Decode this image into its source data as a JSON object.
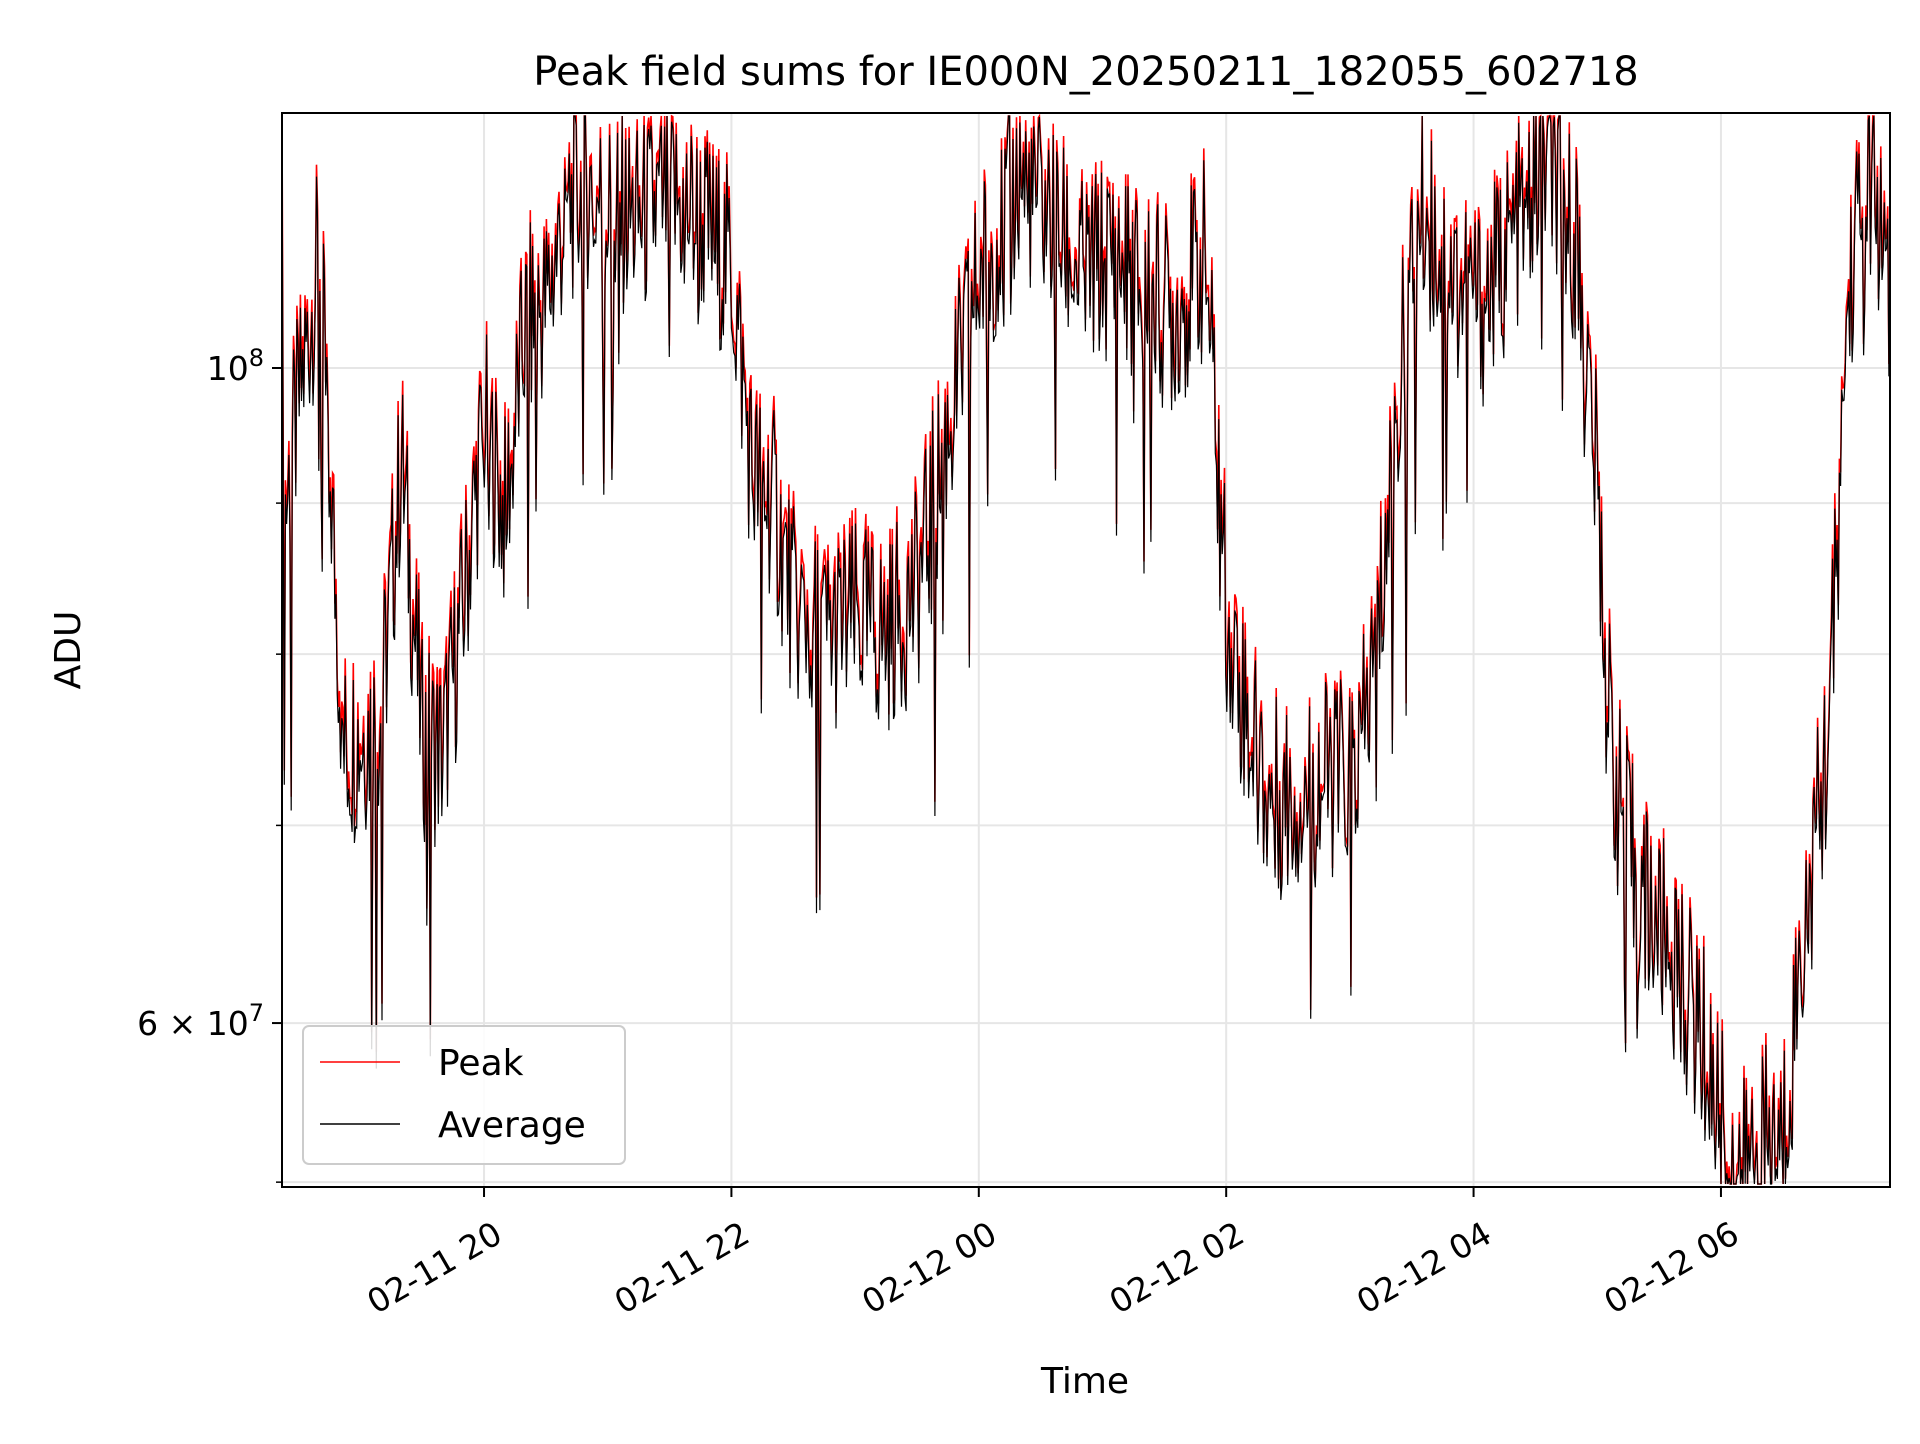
{
  "chart_data": {
    "type": "line",
    "title": "Peak field sums for IE000N_20250211_182055_602718",
    "xlabel": "Time",
    "ylabel": "ADU",
    "y_scale": "log",
    "x_range": [
      "2025-02-11 18:22",
      "2025-02-12 07:22"
    ],
    "ylim": [
      52800000,
      122000000
    ],
    "x_ticks": [
      {
        "time": "2025-02-11 20:00",
        "label": "02-11 20"
      },
      {
        "time": "2025-02-11 22:00",
        "label": "02-11 22"
      },
      {
        "time": "2025-02-12 00:00",
        "label": "02-12 00"
      },
      {
        "time": "2025-02-12 02:00",
        "label": "02-12 02"
      },
      {
        "time": "2025-02-12 04:00",
        "label": "02-12 04"
      },
      {
        "time": "2025-02-12 06:00",
        "label": "02-12 06"
      }
    ],
    "y_ticks_major": [
      {
        "value": 60000000,
        "label_mantissa": "6",
        "label_base": "10",
        "label_exponent": "7",
        "label_times": true
      },
      {
        "value": 100000000,
        "label_mantissa": "",
        "label_base": "10",
        "label_exponent": "8",
        "label_times": false
      }
    ],
    "y_ticks_minor": [
      53000000,
      70000000,
      80000000,
      90000000
    ],
    "grid": true,
    "legend_position": "lower-left",
    "x": [
      "2025-02-11 18:22",
      "2025-02-11 18:40",
      "2025-02-11 18:52",
      "2025-02-11 19:00",
      "2025-02-11 19:10",
      "2025-02-11 19:20",
      "2025-02-11 19:30",
      "2025-02-11 19:40",
      "2025-02-11 19:50",
      "2025-02-11 20:00",
      "2025-02-11 20:10",
      "2025-02-11 20:20",
      "2025-02-11 20:30",
      "2025-02-11 20:40",
      "2025-02-11 20:50",
      "2025-02-11 21:00",
      "2025-02-11 21:15",
      "2025-02-11 21:30",
      "2025-02-11 21:45",
      "2025-02-11 22:00",
      "2025-02-11 22:10",
      "2025-02-11 22:20",
      "2025-02-11 22:30",
      "2025-02-11 22:45",
      "2025-02-11 23:00",
      "2025-02-11 23:15",
      "2025-02-11 23:30",
      "2025-02-11 23:45",
      "2025-02-12 00:00",
      "2025-02-12 00:20",
      "2025-02-12 00:35",
      "2025-02-12 00:50",
      "2025-02-12 01:05",
      "2025-02-12 01:20",
      "2025-02-12 01:35",
      "2025-02-12 01:50",
      "2025-02-12 02:00",
      "2025-02-12 02:10",
      "2025-02-12 02:20",
      "2025-02-12 02:35",
      "2025-02-12 02:50",
      "2025-02-12 03:05",
      "2025-02-12 03:15",
      "2025-02-12 03:25",
      "2025-02-12 03:35",
      "2025-02-12 03:50",
      "2025-02-12 04:05",
      "2025-02-12 04:20",
      "2025-02-12 04:35",
      "2025-02-12 04:50",
      "2025-02-12 05:00",
      "2025-02-12 05:05",
      "2025-02-12 05:10",
      "2025-02-12 05:20",
      "2025-02-12 05:35",
      "2025-02-12 05:50",
      "2025-02-12 06:00",
      "2025-02-12 06:10",
      "2025-02-12 06:20",
      "2025-02-12 06:30",
      "2025-02-12 06:40",
      "2025-02-12 06:50",
      "2025-02-12 06:55",
      "2025-02-12 07:00",
      "2025-02-12 07:05",
      "2025-02-12 07:10",
      "2025-02-12 07:15",
      "2025-02-12 07:22"
    ],
    "series": [
      {
        "name": "Peak",
        "color": "#ff0000",
        "values": [
          89000000,
          110000000,
          75000000,
          76000000,
          77000000,
          94000000,
          76000000,
          75000000,
          84000000,
          97000000,
          90000000,
          104000000,
          106000000,
          114000000,
          116000000,
          114000000,
          113000000,
          115000000,
          113000000,
          109000000,
          93000000,
          91000000,
          84000000,
          82000000,
          83000000,
          82000000,
          85000000,
          96000000,
          108000000,
          117000000,
          113000000,
          108000000,
          110000000,
          107000000,
          105000000,
          110000000,
          84000000,
          77000000,
          72000000,
          72000000,
          73000000,
          74000000,
          84000000,
          101000000,
          114000000,
          108000000,
          106000000,
          112000000,
          118000000,
          111000000,
          92000000,
          78000000,
          72000000,
          67000000,
          64000000,
          60000000,
          56000000,
          53500000,
          55000000,
          55000000,
          65000000,
          73000000,
          83000000,
          102000000,
          112000000,
          114000000,
          116000000,
          103000000
        ]
      },
      {
        "name": "Average",
        "color": "#000000",
        "values": [
          88000000,
          109000000,
          74000000,
          75000000,
          76000000,
          93000000,
          75000000,
          74000000,
          83000000,
          96000000,
          89000000,
          103000000,
          105000000,
          113000000,
          115000000,
          113000000,
          112000000,
          114000000,
          112000000,
          108000000,
          92000000,
          90000000,
          83000000,
          81000000,
          82000000,
          81000000,
          84000000,
          95000000,
          107000000,
          116000000,
          112000000,
          107000000,
          109000000,
          106000000,
          104000000,
          109000000,
          83000000,
          76000000,
          71500000,
          71500000,
          72500000,
          73500000,
          83000000,
          100000000,
          113000000,
          107000000,
          105000000,
          111000000,
          117000000,
          110000000,
          91000000,
          77000000,
          71500000,
          66500000,
          63500000,
          59500000,
          55500000,
          53000000,
          54500000,
          54500000,
          64500000,
          72500000,
          82000000,
          101000000,
          111000000,
          113000000,
          115000000,
          102000000
        ]
      }
    ]
  }
}
